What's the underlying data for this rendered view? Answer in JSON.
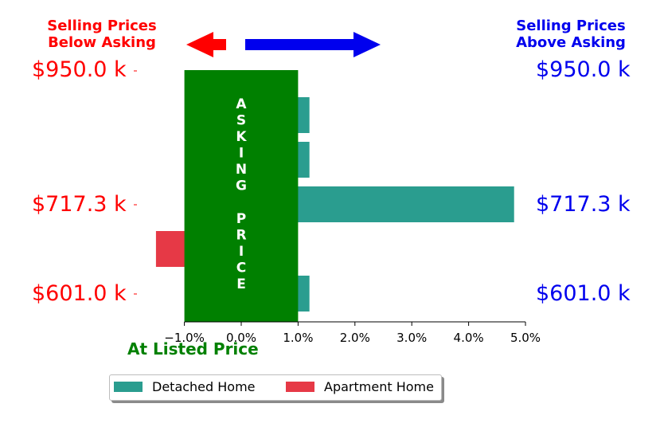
{
  "headers": {
    "left_line1": "Selling Prices",
    "left_line2": "Below Asking",
    "right_line1": "Selling Prices",
    "right_line2": "Above Asking"
  },
  "colors": {
    "below": "#ff0000",
    "above": "#0000ee",
    "asking": "#008000",
    "detached": "#2a9d8f",
    "apartment": "#e63946"
  },
  "price_labels": [
    "$950.0 k",
    "$717.3 k",
    "$601.0 k"
  ],
  "asking_label": "ASKING PRICE",
  "x_caption": "At Listed Price",
  "legend": {
    "detached": "Detached Home",
    "apartment": "Apartment Home"
  },
  "chart_data": {
    "type": "bar",
    "orientation": "horizontal",
    "xlim": [
      -1.0,
      5.0
    ],
    "x_ticks": [
      "−1.0%",
      "0.0%",
      "1.0%",
      "2.0%",
      "3.0%",
      "4.0%",
      "5.0%"
    ],
    "x_tick_values": [
      -1,
      0,
      1,
      2,
      3,
      4,
      5
    ],
    "asking_band": [
      -1.0,
      1.0
    ],
    "rows": [
      {
        "series": "Detached Home",
        "value": 1.2
      },
      {
        "series": "Detached Home",
        "value": 1.2
      },
      {
        "series": "Detached Home",
        "value": 4.8
      },
      {
        "series": "Apartment Home",
        "value": -1.5
      },
      {
        "series": "Detached Home",
        "value": 1.2
      }
    ],
    "series": [
      {
        "name": "Detached Home",
        "color": "#2a9d8f"
      },
      {
        "name": "Apartment Home",
        "color": "#e63946"
      }
    ]
  }
}
